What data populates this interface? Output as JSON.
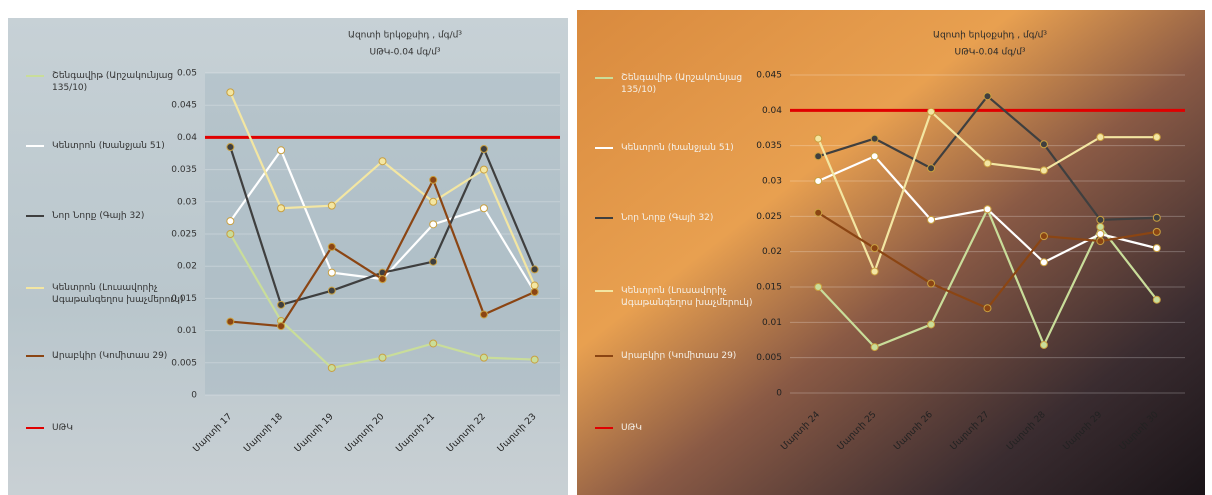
{
  "chart_data": [
    {
      "type": "line",
      "title": "Ազոտի երկօքսիդ , մգ/մ³",
      "subtitle": "ՍԹԿ-0.04 մգ/մ³",
      "categories": [
        "Մարտի 17",
        "Մարտի 18",
        "Մարտի 19",
        "Մարտի 20",
        "Մարտի 21",
        "Մարտի 22",
        "Մարտի 23"
      ],
      "ylim": [
        0,
        0.05
      ],
      "yticks": [
        0,
        0.005,
        0.01,
        0.015,
        0.02,
        0.025,
        0.03,
        0.035,
        0.04,
        0.045,
        0.05
      ],
      "series": [
        {
          "name": "Շենգավիթ (Արշակունյաց 135/10)",
          "color": "#c9dd9a",
          "values": [
            0.025,
            0.0115,
            0.0042,
            0.0058,
            0.008,
            0.0058,
            0.0055
          ]
        },
        {
          "name": "Կենտրոն (Խանջյան 51)",
          "color": "#ffffff",
          "values": [
            0.027,
            0.038,
            0.019,
            0.018,
            0.0265,
            0.029,
            0.016
          ]
        },
        {
          "name": "Նոր Նորք (Գայի 32)",
          "color": "#3f3f3f",
          "values": [
            0.0385,
            0.014,
            0.0162,
            0.019,
            0.0207,
            0.0382,
            0.0195
          ]
        },
        {
          "name": "Կենտրոն (Լուսավորիչ Ագաթանգեղոս խաչմերուկ)",
          "color": "#f3e6a2",
          "values": [
            0.047,
            0.029,
            0.0294,
            0.0363,
            0.03,
            0.035,
            0.017
          ]
        },
        {
          "name": "Արաբկիր (Կոմիտաս 29)",
          "color": "#8b4513",
          "values": [
            0.0114,
            0.0107,
            0.023,
            0.018,
            0.0334,
            0.0125,
            0.016
          ]
        }
      ],
      "threshold": {
        "name": "ՍԹԿ",
        "value": 0.04,
        "color": "#e00000"
      }
    },
    {
      "type": "line",
      "title": "Ազոտի երկօքսիդ , մգ/մ³",
      "subtitle": "ՍԹԿ-0.04 մգ/մ³",
      "categories": [
        "Մարտի 24",
        "Մարտի 25",
        "Մարտի 26",
        "Մարտի 27",
        "Մարտի 28",
        "Մարտի 29",
        "Մարտի 30"
      ],
      "ylim": [
        0,
        0.045
      ],
      "yticks": [
        0,
        0.005,
        0.01,
        0.015,
        0.02,
        0.025,
        0.03,
        0.035,
        0.04,
        0.045
      ],
      "series": [
        {
          "name": "Շենգավիթ (Արշակունյաց 135/10)",
          "color": "#c9dd9a",
          "values": [
            0.015,
            0.0065,
            0.0097,
            0.026,
            0.0068,
            0.0235,
            0.0132
          ]
        },
        {
          "name": "Կենտրոն (Խանջյան 51)",
          "color": "#ffffff",
          "values": [
            0.03,
            0.0335,
            0.0245,
            0.026,
            0.0185,
            0.0225,
            0.0205
          ]
        },
        {
          "name": "Նոր Նորք (Գայի 32)",
          "color": "#3f3f3f",
          "values": [
            0.0335,
            0.036,
            0.0318,
            0.042,
            0.0352,
            0.0245,
            0.0248
          ]
        },
        {
          "name": "Կենտրոն (Լուսավորիչ Ագաթանգեղոս խաչմերուկ)",
          "color": "#f3e6a2",
          "values": [
            0.036,
            0.0172,
            0.0398,
            0.0325,
            0.0315,
            0.0362,
            0.0362
          ]
        },
        {
          "name": "Արաբկիր (Կոմիտաս 29)",
          "color": "#8b4513",
          "values": [
            0.0255,
            0.0205,
            0.0155,
            0.012,
            0.0222,
            0.0215,
            0.0228
          ]
        }
      ],
      "threshold": {
        "name": "ՍԹԿ",
        "value": 0.04,
        "color": "#e00000"
      }
    }
  ]
}
